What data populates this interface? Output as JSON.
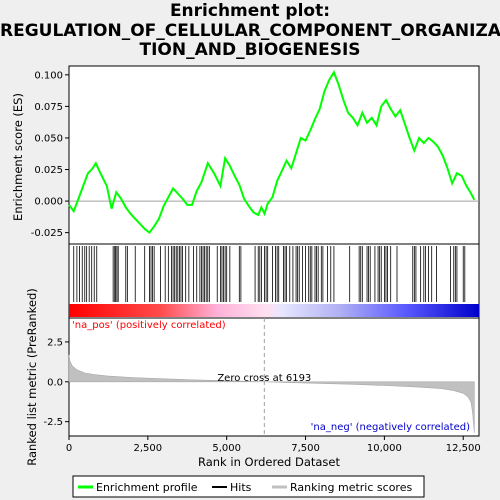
{
  "title_lines": [
    "Enrichment plot:",
    "REGULATION_OF_CELLULAR_COMPONENT_ORGANIZA",
    "TION_AND_BIOGENESIS"
  ],
  "chart_data": {
    "type": "line",
    "x_axis": {
      "label": "Rank in Ordered Dataset",
      "ticks": [
        0,
        2500,
        5000,
        7500,
        10000,
        12500
      ],
      "tick_labels": [
        "0",
        "2,500",
        "5,000",
        "7,500",
        "10,000",
        "12,500"
      ],
      "range": [
        0,
        13000
      ]
    },
    "es_panel": {
      "ylabel": "Enrichment score (ES)",
      "ylim": [
        -0.034,
        0.107
      ],
      "ticks": [
        -0.025,
        0.0,
        0.025,
        0.05,
        0.075,
        0.1
      ],
      "tick_labels": [
        "-0.025",
        "0.000",
        "0.025",
        "0.050",
        "0.075",
        "0.100"
      ],
      "series": [
        {
          "name": "Enrichment profile",
          "color": "#00ff00",
          "x": [
            0,
            150,
            300,
            450,
            600,
            750,
            850,
            1000,
            1200,
            1350,
            1500,
            1650,
            1800,
            1950,
            2100,
            2250,
            2400,
            2550,
            2700,
            2850,
            3000,
            3150,
            3300,
            3450,
            3600,
            3750,
            3900,
            4050,
            4200,
            4400,
            4600,
            4800,
            4950,
            5100,
            5250,
            5400,
            5550,
            5700,
            5850,
            6000,
            6100,
            6200,
            6300,
            6450,
            6600,
            6750,
            6900,
            7050,
            7200,
            7350,
            7500,
            7650,
            7800,
            7950,
            8100,
            8250,
            8400,
            8550,
            8700,
            8850,
            9000,
            9150,
            9300,
            9450,
            9600,
            9750,
            9900,
            10050,
            10200,
            10350,
            10500,
            10650,
            10800,
            10950,
            11100,
            11250,
            11400,
            11550,
            11700,
            11850,
            12000,
            12150,
            12300,
            12450,
            12600,
            12750,
            12850
          ],
          "y": [
            -0.003,
            -0.008,
            0.002,
            0.012,
            0.022,
            0.026,
            0.03,
            0.022,
            0.012,
            -0.006,
            0.007,
            0.002,
            -0.005,
            -0.01,
            -0.014,
            -0.018,
            -0.022,
            -0.025,
            -0.02,
            -0.014,
            -0.004,
            0.003,
            0.01,
            0.006,
            0.002,
            -0.003,
            -0.003,
            0.008,
            0.015,
            0.03,
            0.022,
            0.012,
            0.034,
            0.028,
            0.02,
            0.013,
            0.002,
            -0.004,
            -0.009,
            -0.011,
            -0.005,
            -0.01,
            -0.002,
            0.003,
            0.016,
            0.024,
            0.032,
            0.026,
            0.038,
            0.05,
            0.048,
            0.056,
            0.065,
            0.073,
            0.087,
            0.096,
            0.102,
            0.092,
            0.08,
            0.07,
            0.066,
            0.06,
            0.07,
            0.062,
            0.066,
            0.06,
            0.075,
            0.08,
            0.073,
            0.067,
            0.072,
            0.061,
            0.05,
            0.04,
            0.05,
            0.046,
            0.05,
            0.047,
            0.043,
            0.036,
            0.026,
            0.014,
            0.022,
            0.02,
            0.012,
            0.006,
            0.001
          ]
        }
      ]
    },
    "hits": {
      "name": "Hits",
      "x": [
        150,
        250,
        330,
        420,
        500,
        560,
        640,
        720,
        800,
        880,
        1400,
        1450,
        1480,
        1520,
        1560,
        1800,
        1850,
        2100,
        2400,
        2550,
        2600,
        2650,
        2700,
        2900,
        3050,
        3150,
        3250,
        3300,
        3350,
        3400,
        3450,
        3500,
        3550,
        3600,
        3700,
        3800,
        3950,
        4050,
        4150,
        4200,
        4250,
        4300,
        4350,
        4400,
        4450,
        4700,
        4800,
        4850,
        4900,
        4950,
        5000,
        5100,
        5400,
        5450,
        5900,
        6000,
        6050,
        6100,
        6200,
        6250,
        6300,
        6450,
        6550,
        6600,
        6650,
        6800,
        6850,
        6900,
        7000,
        7100,
        7200,
        7250,
        7300,
        7400,
        7500,
        7600,
        7650,
        7700,
        7800,
        7850,
        7900,
        8000,
        8050,
        8200,
        8300,
        8400,
        8900,
        9200,
        9250,
        9300,
        9450,
        9500,
        9550,
        9700,
        9800,
        9850,
        9900,
        10000,
        10050,
        10100,
        10200,
        10400,
        10900,
        10950,
        11000,
        11150,
        11250,
        11300,
        11400,
        11500,
        11650,
        12100,
        12200,
        12250,
        12300,
        12500,
        12550
      ]
    },
    "ranking_metric": {
      "name": "Ranking metric scores",
      "ylabel": "Ranked list metric (PreRanked)",
      "ylim": [
        -3.4,
        4.0
      ],
      "ticks": [
        -2.5,
        0.0,
        2.5
      ],
      "tick_labels": [
        "-2.5",
        "0.0",
        "2.5"
      ],
      "x": [
        0,
        30,
        100,
        250,
        500,
        800,
        1200,
        2000,
        3000,
        4000,
        5000,
        6193,
        7000,
        8000,
        9000,
        10000,
        11000,
        11800,
        12200,
        12500,
        12650,
        12750,
        12800,
        12850
      ],
      "y": [
        1.7,
        1.3,
        1.0,
        0.75,
        0.55,
        0.45,
        0.37,
        0.27,
        0.19,
        0.12,
        0.07,
        0.0,
        -0.05,
        -0.1,
        -0.16,
        -0.23,
        -0.32,
        -0.43,
        -0.55,
        -0.72,
        -0.95,
        -1.3,
        -2.0,
        -3.2
      ]
    },
    "annotations": {
      "zero_cross": "Zero cross at 6193",
      "zero_cross_x": 6193,
      "pos_label": "'na_pos' (positively correlated)",
      "neg_label": "'na_neg' (negatively correlated)"
    },
    "legend": {
      "placement": "bottom",
      "items": [
        {
          "label": "Enrichment profile",
          "color": "#00ff00"
        },
        {
          "label": "Hits",
          "color": "#000000"
        },
        {
          "label": "Ranking metric scores",
          "color": "#c0c0c0"
        }
      ]
    },
    "colors": {
      "pos": "#ff0000",
      "neg": "#0000ff",
      "zero_line": "#a0a0a0"
    }
  }
}
